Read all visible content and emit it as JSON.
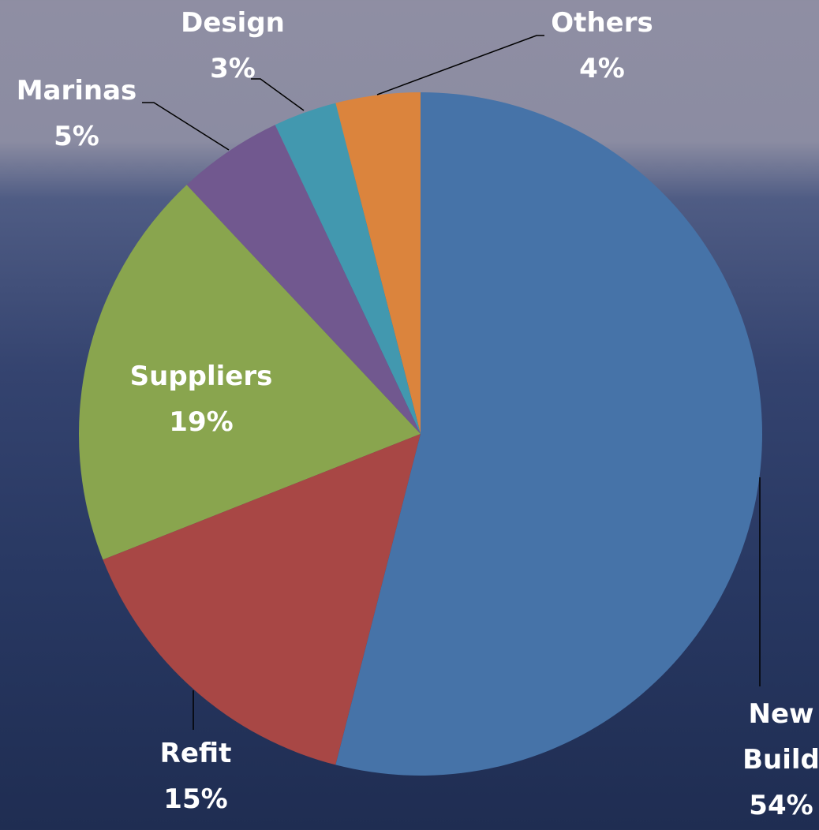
{
  "chart_data": {
    "type": "pie",
    "categories": [
      "New Build",
      "Refit",
      "Suppliers",
      "Marinas",
      "Design",
      "Others"
    ],
    "values": [
      54,
      15,
      19,
      5,
      3,
      4
    ],
    "value_labels": [
      "54%",
      "15%",
      "19%",
      "5%",
      "3%",
      "4%"
    ],
    "colors": [
      "#4673a8",
      "#a84745",
      "#89a54e",
      "#71588f",
      "#4298af",
      "#db843d"
    ]
  }
}
